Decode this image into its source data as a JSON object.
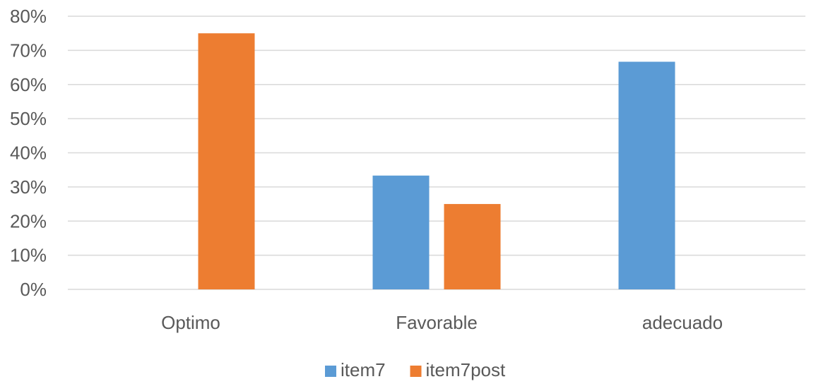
{
  "chart_data": {
    "type": "bar",
    "title": "",
    "xlabel": "",
    "ylabel": "",
    "categories": [
      "Optimo",
      "Favorable",
      "adecuado"
    ],
    "series": [
      {
        "name": "item7",
        "color": "#5b9bd5",
        "values": [
          0,
          0.3333,
          0.6667
        ]
      },
      {
        "name": "item7post",
        "color": "#ed7d31",
        "values": [
          0.75,
          0.25,
          0
        ]
      }
    ],
    "ylim": [
      0,
      0.8
    ],
    "yticks": [
      0,
      0.1,
      0.2,
      0.3,
      0.4,
      0.5,
      0.6,
      0.7,
      0.8
    ],
    "ytick_labels": [
      "0%",
      "10%",
      "20%",
      "30%",
      "40%",
      "50%",
      "60%",
      "70%",
      "80%"
    ],
    "grid": true,
    "legend_position": "bottom",
    "colors": {
      "gridline": "#d9d9d9",
      "text": "#595959"
    }
  }
}
